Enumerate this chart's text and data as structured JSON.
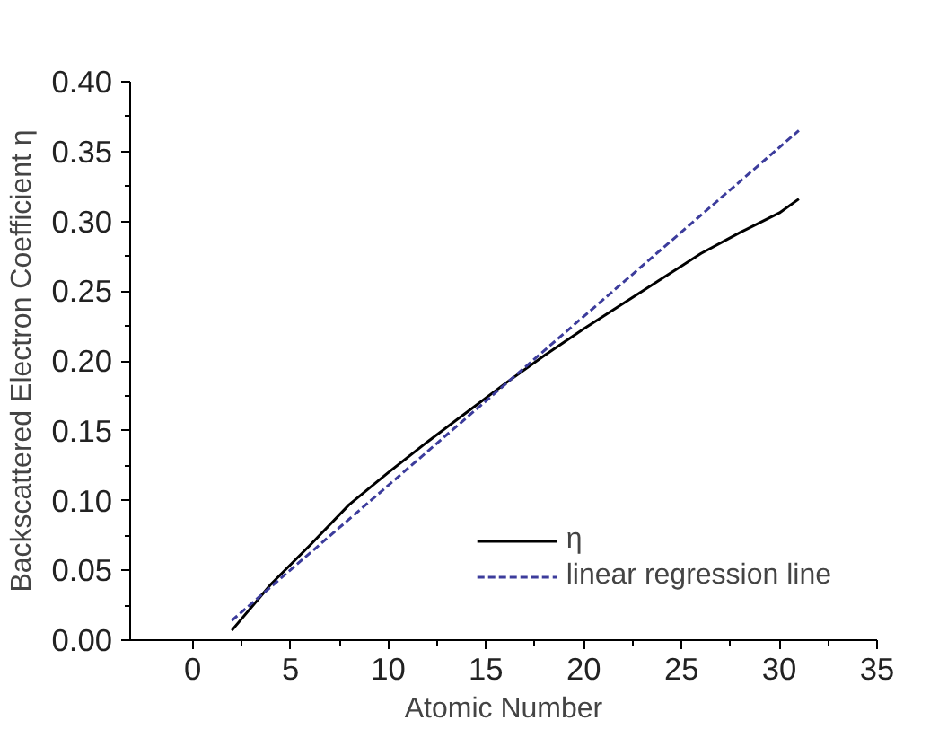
{
  "chart_data": {
    "type": "line",
    "xlabel": "Atomic Number",
    "ylabel": "Backscattered Electron Coefficient η",
    "xlim": [
      -3.2,
      35
    ],
    "xticks": [
      0,
      5,
      10,
      15,
      20,
      25,
      30,
      35
    ],
    "ylim": [
      0,
      0.4
    ],
    "yticks": [
      {
        "value": 0,
        "label": "0.00"
      },
      {
        "value": 0.05,
        "label": "0.05"
      },
      {
        "value": 0.1,
        "label": "0.10"
      },
      {
        "value": 0.15,
        "label": "0.15"
      },
      {
        "value": 0.2,
        "label": "0.20"
      },
      {
        "value": 0.25,
        "label": "0.25"
      },
      {
        "value": 0.3,
        "label": "0.30"
      },
      {
        "value": 0.35,
        "label": "0.35"
      },
      {
        "value": 0.4,
        "label": "0.40"
      }
    ],
    "grid": false,
    "legend": "bottom right",
    "series": [
      {
        "name": "η",
        "color": "#000000",
        "line_style": "solid",
        "x": [
          2,
          4,
          6,
          8,
          10,
          12,
          14,
          16,
          18,
          20,
          22,
          24,
          26,
          28,
          30,
          31
        ],
        "values": [
          0.007,
          0.04,
          0.068,
          0.097,
          0.12,
          0.142,
          0.163,
          0.184,
          0.204,
          0.223,
          0.241,
          0.259,
          0.277,
          0.292,
          0.306,
          0.316
        ]
      },
      {
        "name": "linear regression line",
        "color": "#3c3c9c",
        "line_style": "dashed",
        "x": [
          2,
          31
        ],
        "values": [
          0.014,
          0.365
        ]
      }
    ]
  }
}
